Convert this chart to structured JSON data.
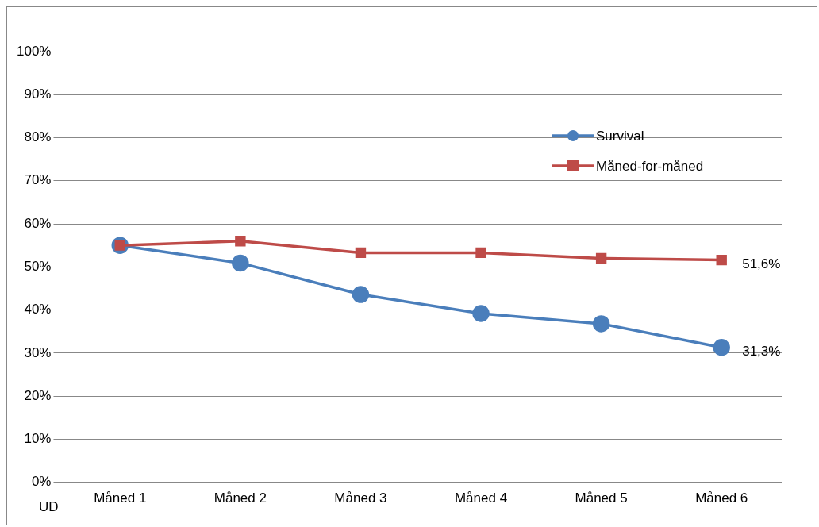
{
  "chart_data": {
    "type": "line",
    "categories": [
      "Måned 1",
      "Måned 2",
      "Måned 3",
      "Måned 4",
      "Måned 5",
      "Måned 6"
    ],
    "series": [
      {
        "name": "Survival",
        "color": "#4a7ebb",
        "marker": "circle",
        "values": [
          55.0,
          50.9,
          43.6,
          39.2,
          36.8,
          31.3
        ],
        "value_labels": [
          null,
          null,
          null,
          null,
          null,
          "31,3%"
        ]
      },
      {
        "name": "Måned-for-måned",
        "color": "#be4b48",
        "marker": "square",
        "values": [
          55.0,
          56.0,
          53.3,
          53.3,
          52.0,
          51.6
        ],
        "value_labels": [
          null,
          null,
          null,
          null,
          null,
          "51,6%"
        ]
      }
    ],
    "ylim": [
      0,
      100
    ],
    "yticks": [
      {
        "value": 0,
        "label": "0%"
      },
      {
        "value": 10,
        "label": "10%"
      },
      {
        "value": 20,
        "label": "20%"
      },
      {
        "value": 30,
        "label": "30%"
      },
      {
        "value": 40,
        "label": "40%"
      },
      {
        "value": 50,
        "label": "50%"
      },
      {
        "value": 60,
        "label": "60%"
      },
      {
        "value": 70,
        "label": "70%"
      },
      {
        "value": 80,
        "label": "80%"
      },
      {
        "value": 90,
        "label": "90%"
      },
      {
        "value": 100,
        "label": "100%"
      }
    ],
    "grid": "y",
    "legend": "top right",
    "annotations": [
      "UD"
    ]
  }
}
